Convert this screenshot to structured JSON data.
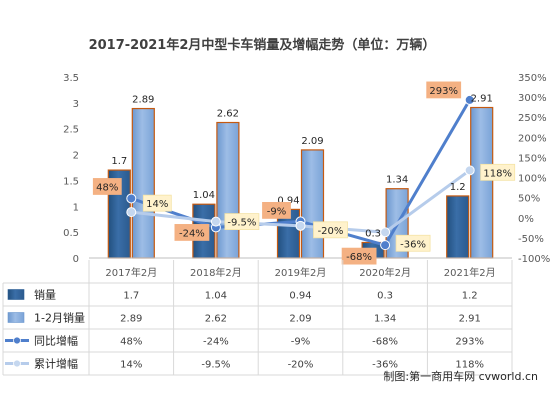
{
  "chart_data": {
    "type": "bar",
    "title": "2017-2021年2月中型卡车销量及增幅走势（单位：万辆）",
    "categories": [
      "2017年2月",
      "2018年2月",
      "2019年2月",
      "2020年2月",
      "2021年2月"
    ],
    "ylim": [
      0,
      3.5
    ],
    "y_ticks": [
      "0",
      "0.5",
      "1",
      "1.5",
      "2",
      "2.5",
      "3",
      "3.5"
    ],
    "y2lim": [
      -100,
      350
    ],
    "y2_ticks": [
      "-100%",
      "-50%",
      "0%",
      "50%",
      "100%",
      "150%",
      "200%",
      "250%",
      "300%",
      "350%"
    ],
    "grid": false,
    "series": [
      {
        "name": "销量",
        "type": "bar",
        "axis": "left",
        "color": "#2e5f95",
        "values": [
          1.7,
          1.04,
          0.94,
          0.3,
          1.2
        ],
        "labels": [
          "1.7",
          "1.04",
          "0.94",
          "0.3",
          "1.2"
        ]
      },
      {
        "name": "1-2月销量",
        "type": "bar",
        "axis": "left",
        "color": "#7ea6d8",
        "values": [
          2.89,
          2.62,
          2.09,
          1.34,
          2.91
        ],
        "labels": [
          "2.89",
          "2.62",
          "2.09",
          "1.34",
          "2.91"
        ]
      },
      {
        "name": "同比增幅",
        "type": "line",
        "axis": "right",
        "color": "#4472c4",
        "values": [
          48,
          -24,
          -9,
          -68,
          293
        ],
        "labels": [
          "48%",
          "-24%",
          "-9%",
          "-68%",
          "293%"
        ]
      },
      {
        "name": "累计增幅",
        "type": "line",
        "axis": "right",
        "color": "#a9c4e8",
        "values": [
          14,
          -9.5,
          -20,
          -36,
          118
        ],
        "labels": [
          "14%",
          "-9.5%",
          "-20%",
          "-36%",
          "118%"
        ]
      }
    ]
  },
  "credit": "制图:第一商用车网 cvworld.cn"
}
